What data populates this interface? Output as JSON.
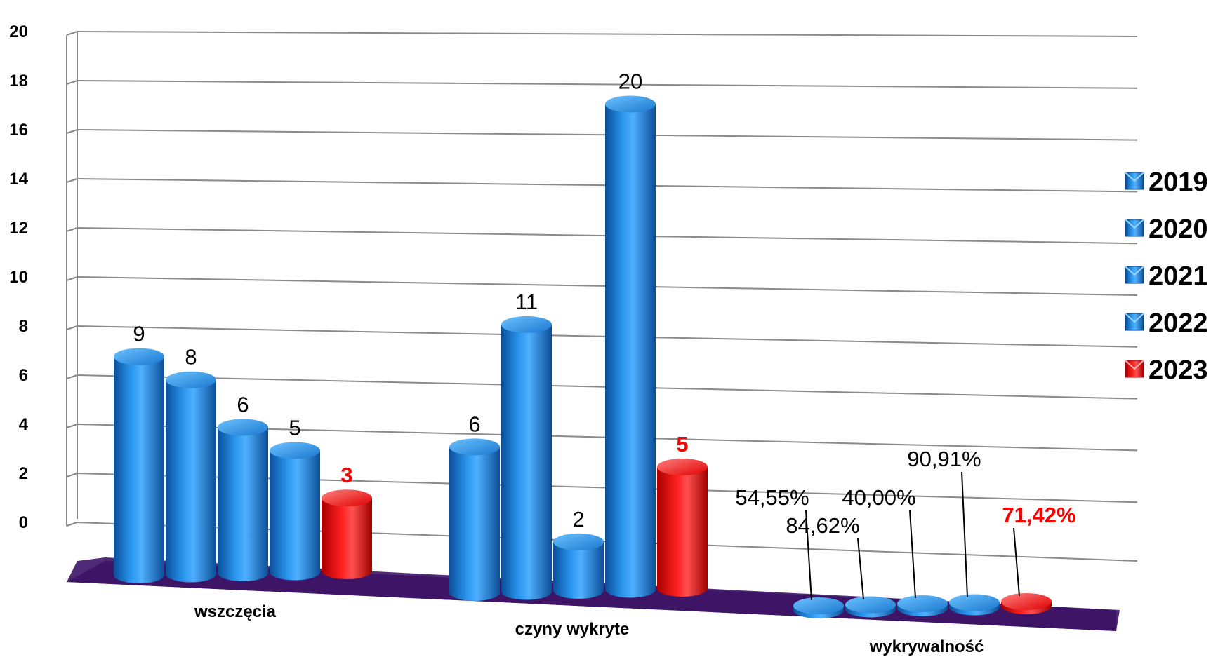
{
  "chart_data": {
    "type": "bar",
    "categories": [
      "wszczęcia",
      "czyny wykryte",
      "wykrywalność"
    ],
    "series": [
      {
        "name": "2019",
        "values": [
          9,
          6,
          0.5455
        ],
        "labels": [
          "9",
          "6",
          "54,55%"
        ]
      },
      {
        "name": "2020",
        "values": [
          8,
          11,
          0.8462
        ],
        "labels": [
          "8",
          "11",
          "84,62%"
        ]
      },
      {
        "name": "2021",
        "values": [
          6,
          2,
          0.4
        ],
        "labels": [
          "6",
          "2",
          "40,00%"
        ]
      },
      {
        "name": "2022",
        "values": [
          5,
          20,
          0.9091
        ],
        "labels": [
          "5",
          "20",
          "90,91%"
        ]
      },
      {
        "name": "2023",
        "values": [
          3,
          5,
          0.7142
        ],
        "labels": [
          "3",
          "5",
          "71,42%"
        ]
      }
    ],
    "y_ticks": [
      "0",
      "2",
      "4",
      "6",
      "8",
      "10",
      "12",
      "14",
      "16",
      "18",
      "20"
    ],
    "ylim": [
      0,
      20
    ],
    "legend_position": "right",
    "grid": true,
    "colors": {
      "normal": "#1c7fd6",
      "highlight": "#ff0000",
      "floor": "#3d1466"
    },
    "highlight_series": "2023"
  }
}
